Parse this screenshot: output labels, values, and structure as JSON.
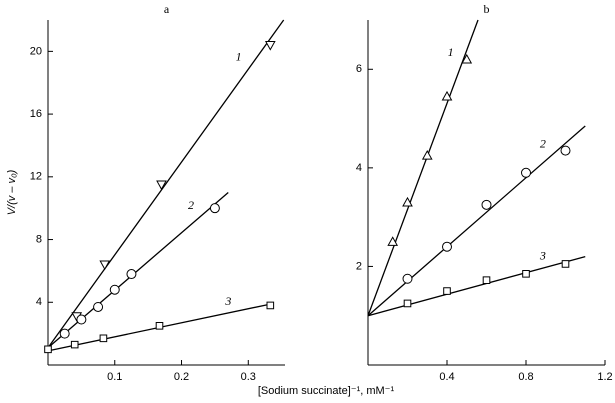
{
  "chart_data": [
    {
      "type": "scatter",
      "title": "a",
      "ylabel": "V/(v – v₀)",
      "xlim": [
        0,
        0.355
      ],
      "ylim": [
        0,
        22
      ],
      "xticks": [
        0.1,
        0.2,
        0.3
      ],
      "yticks": [
        4,
        8,
        12,
        16,
        20
      ],
      "series": [
        {
          "name": "1",
          "color": "#000",
          "marker": "triangle-down",
          "x": [
            0.043,
            0.085,
            0.17,
            0.333
          ],
          "values": [
            3.1,
            6.4,
            11.5,
            20.4
          ],
          "line_x": [
            0,
            0.353
          ],
          "line_y": [
            1.1,
            22
          ]
        },
        {
          "name": "2",
          "color": "#000",
          "marker": "circle",
          "x": [
            0.025,
            0.05,
            0.075,
            0.1,
            0.125,
            0.25
          ],
          "values": [
            2.0,
            2.9,
            3.7,
            4.8,
            5.8,
            10.0
          ],
          "line_x": [
            0,
            0.27
          ],
          "line_y": [
            1.1,
            11.0
          ]
        },
        {
          "name": "3",
          "color": "#000",
          "marker": "square",
          "x": [
            0,
            0.04,
            0.083,
            0.167,
            0.333
          ],
          "values": [
            1.0,
            1.3,
            1.7,
            2.5,
            3.8
          ],
          "line_x": [
            0,
            0.335
          ],
          "line_y": [
            0.9,
            3.9
          ]
        }
      ]
    },
    {
      "type": "scatter",
      "title": "b",
      "xlim": [
        0,
        1.2
      ],
      "ylim": [
        0,
        7
      ],
      "xticks": [
        0.4,
        0.8,
        1.2
      ],
      "yticks": [
        2,
        4,
        6
      ],
      "series": [
        {
          "name": "1",
          "color": "#000",
          "marker": "triangle-up",
          "x": [
            0.125,
            0.2,
            0.3,
            0.4,
            0.5
          ],
          "values": [
            2.5,
            3.3,
            4.25,
            5.45,
            6.2
          ],
          "line_x": [
            0,
            0.557
          ],
          "line_y": [
            1.0,
            7
          ]
        },
        {
          "name": "2",
          "color": "#000",
          "marker": "circle",
          "x": [
            0.2,
            0.4,
            0.6,
            0.8,
            1.0
          ],
          "values": [
            1.75,
            2.4,
            3.25,
            3.9,
            4.35
          ],
          "line_x": [
            0,
            1.1
          ],
          "line_y": [
            1.0,
            4.85
          ]
        },
        {
          "name": "3",
          "color": "#000",
          "marker": "square",
          "x": [
            0.2,
            0.4,
            0.6,
            0.8,
            1.0
          ],
          "values": [
            1.25,
            1.5,
            1.72,
            1.85,
            2.05
          ],
          "line_x": [
            0,
            1.1
          ],
          "line_y": [
            1.0,
            2.2
          ]
        }
      ]
    }
  ],
  "shared_xlabel": "[Sodium succinate]⁻¹, mM⁻¹"
}
